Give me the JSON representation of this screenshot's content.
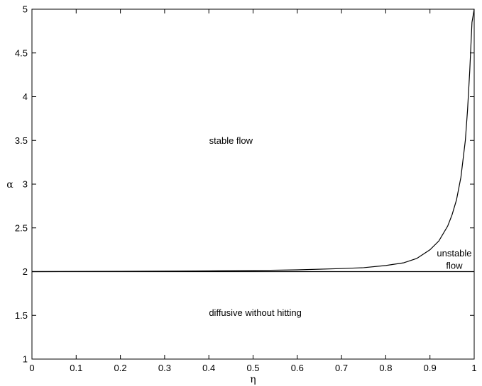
{
  "chart_data": {
    "type": "line",
    "title": "",
    "xlabel": "η",
    "ylabel": "α",
    "xlim": [
      0,
      1
    ],
    "ylim": [
      1,
      5
    ],
    "grid": false,
    "xticks": [
      "0",
      "0.1",
      "0.2",
      "0.3",
      "0.4",
      "0.5",
      "0.6",
      "0.7",
      "0.8",
      "0.9",
      "1"
    ],
    "yticks": [
      "1",
      "1.5",
      "2",
      "2.5",
      "3",
      "3.5",
      "4",
      "4.5",
      "5"
    ],
    "series": [
      {
        "x": [
          0,
          0.2,
          0.4,
          0.5,
          0.6,
          0.7,
          0.75,
          0.8,
          0.84,
          0.87,
          0.9,
          0.92,
          0.94,
          0.95,
          0.96,
          0.97,
          0.98,
          0.985,
          0.99,
          0.995,
          1.0
        ],
        "y": [
          2.0,
          2.003,
          2.008,
          2.013,
          2.02,
          2.035,
          2.045,
          2.07,
          2.1,
          2.15,
          2.25,
          2.35,
          2.52,
          2.65,
          2.82,
          3.08,
          3.5,
          3.85,
          4.3,
          4.85,
          5.0
        ]
      },
      {
        "x": [
          0,
          1
        ],
        "y": [
          2,
          2
        ]
      }
    ],
    "annotations": [
      {
        "text": "stable flow",
        "x": 0.45,
        "y": 3.5
      },
      {
        "text": "unstable",
        "x": 0.955,
        "y": 2.21
      },
      {
        "text": "flow",
        "x": 0.955,
        "y": 2.07
      },
      {
        "text": "diffusive without hitting",
        "x": 0.505,
        "y": 1.53
      }
    ]
  }
}
